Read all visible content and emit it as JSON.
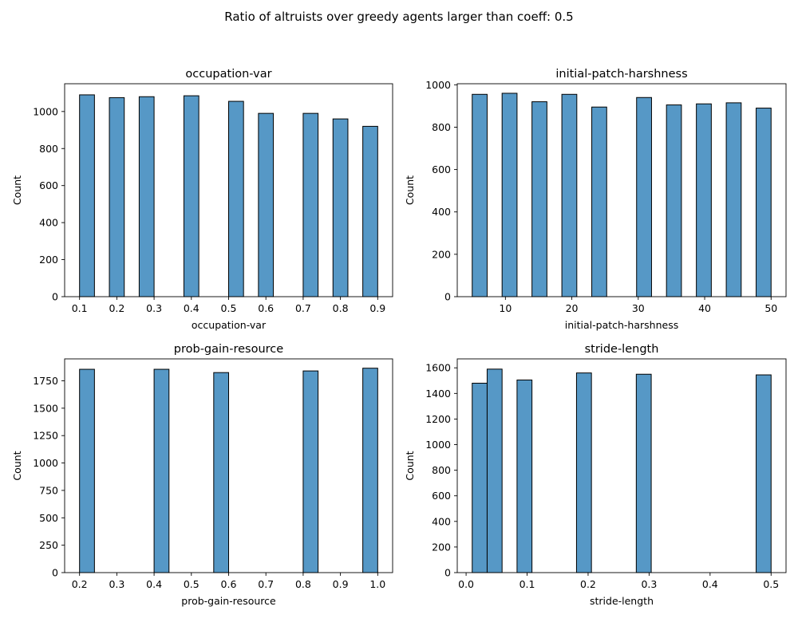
{
  "suptitle": "Ratio of altruists over greedy agents larger than coeff: 0.5",
  "colors": {
    "bar_fill": "#5698c6",
    "bar_edge": "#000000",
    "axis": "#000000"
  },
  "chart_data": [
    {
      "type": "bar",
      "title": "occupation-var",
      "xlabel": "occupation-var",
      "ylabel": "Count",
      "xlim": [
        0.06,
        0.94
      ],
      "ylim": [
        0,
        1150
      ],
      "xticks": [
        0.1,
        0.2,
        0.3,
        0.4,
        0.5,
        0.6,
        0.7,
        0.8,
        0.9
      ],
      "xtick_labels": [
        "0.1",
        "0.2",
        "0.3",
        "0.4",
        "0.5",
        "0.6",
        "0.7",
        "0.8",
        "0.9"
      ],
      "yticks": [
        0,
        200,
        400,
        600,
        800,
        1000
      ],
      "ytick_labels": [
        "0",
        "200",
        "400",
        "600",
        "800",
        "1000"
      ],
      "bin_width": 0.04,
      "bins": [
        {
          "left": 0.1,
          "value": 1090
        },
        {
          "left": 0.18,
          "value": 1075
        },
        {
          "left": 0.26,
          "value": 1080
        },
        {
          "left": 0.38,
          "value": 1085
        },
        {
          "left": 0.5,
          "value": 1055
        },
        {
          "left": 0.58,
          "value": 990
        },
        {
          "left": 0.7,
          "value": 990
        },
        {
          "left": 0.78,
          "value": 960
        },
        {
          "left": 0.86,
          "value": 920
        }
      ]
    },
    {
      "type": "bar",
      "title": "initial-patch-harshness",
      "xlabel": "initial-patch-harshness",
      "ylabel": "Count",
      "xlim": [
        2.75,
        52.25
      ],
      "ylim": [
        0,
        1005
      ],
      "xticks": [
        10,
        20,
        30,
        40,
        50
      ],
      "xtick_labels": [
        "10",
        "20",
        "30",
        "40",
        "50"
      ],
      "yticks": [
        0,
        200,
        400,
        600,
        800,
        1000
      ],
      "ytick_labels": [
        "0",
        "200",
        "400",
        "600",
        "800",
        "1000"
      ],
      "bin_width": 2.25,
      "bins": [
        {
          "left": 5.0,
          "value": 955
        },
        {
          "left": 9.5,
          "value": 960
        },
        {
          "left": 14.0,
          "value": 920
        },
        {
          "left": 18.5,
          "value": 955
        },
        {
          "left": 23.0,
          "value": 895
        },
        {
          "left": 29.75,
          "value": 940
        },
        {
          "left": 34.25,
          "value": 905
        },
        {
          "left": 38.75,
          "value": 910
        },
        {
          "left": 43.25,
          "value": 915
        },
        {
          "left": 47.75,
          "value": 890
        }
      ]
    },
    {
      "type": "bar",
      "title": "prob-gain-resource",
      "xlabel": "prob-gain-resource",
      "ylabel": "Count",
      "xlim": [
        0.16,
        1.04
      ],
      "ylim": [
        0,
        1950
      ],
      "xticks": [
        0.2,
        0.3,
        0.4,
        0.5,
        0.6,
        0.7,
        0.8,
        0.9,
        1.0
      ],
      "xtick_labels": [
        "0.2",
        "0.3",
        "0.4",
        "0.5",
        "0.6",
        "0.7",
        "0.8",
        "0.9",
        "1.0"
      ],
      "yticks": [
        0,
        250,
        500,
        750,
        1000,
        1250,
        1500,
        1750
      ],
      "ytick_labels": [
        "0",
        "250",
        "500",
        "750",
        "1000",
        "1250",
        "1500",
        "1750"
      ],
      "bin_width": 0.04,
      "bins": [
        {
          "left": 0.2,
          "value": 1855
        },
        {
          "left": 0.4,
          "value": 1855
        },
        {
          "left": 0.56,
          "value": 1825
        },
        {
          "left": 0.8,
          "value": 1840
        },
        {
          "left": 0.96,
          "value": 1865
        }
      ]
    },
    {
      "type": "bar",
      "title": "stride-length",
      "xlabel": "stride-length",
      "ylabel": "Count",
      "xlim": [
        -0.0145,
        0.5245
      ],
      "ylim": [
        0,
        1670
      ],
      "xticks": [
        0.0,
        0.1,
        0.2,
        0.3,
        0.4,
        0.5
      ],
      "xtick_labels": [
        "0.0",
        "0.1",
        "0.2",
        "0.3",
        "0.4",
        "0.5"
      ],
      "yticks": [
        0,
        200,
        400,
        600,
        800,
        1000,
        1200,
        1400,
        1600
      ],
      "ytick_labels": [
        "0",
        "200",
        "400",
        "600",
        "800",
        "1000",
        "1200",
        "1400",
        "1600"
      ],
      "bin_width": 0.0245,
      "bins": [
        {
          "left": 0.01,
          "value": 1480
        },
        {
          "left": 0.0345,
          "value": 1590
        },
        {
          "left": 0.0835,
          "value": 1505
        },
        {
          "left": 0.181,
          "value": 1560
        },
        {
          "left": 0.279,
          "value": 1550
        },
        {
          "left": 0.4755,
          "value": 1545
        }
      ]
    }
  ]
}
